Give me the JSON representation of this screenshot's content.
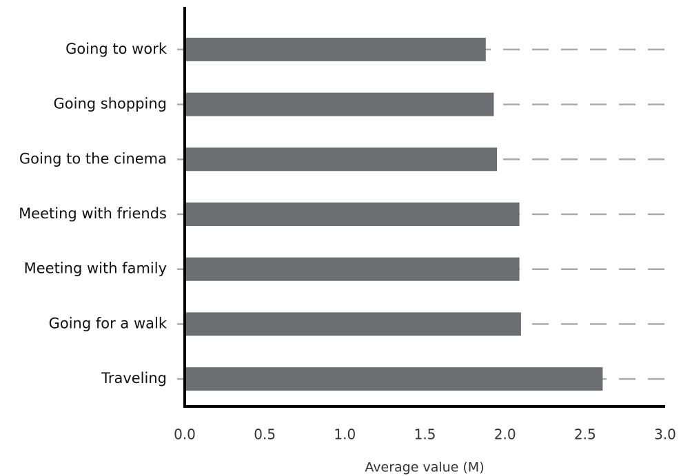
{
  "chart_data": {
    "type": "bar",
    "orientation": "horizontal",
    "x_label": "Average value (M)",
    "categories": [
      "Going to work",
      "Going shopping",
      "Going to the cinema",
      "Meeting with friends",
      "Meeting with family",
      "Going for a walk",
      "Traveling"
    ],
    "values": [
      1.88,
      1.93,
      1.95,
      2.09,
      2.09,
      2.1,
      2.61
    ],
    "color": "#6d6e71",
    "xlim": [
      0,
      3
    ],
    "xticks": [
      {
        "value": 0,
        "label": "0.0"
      },
      0.5,
      {
        "value": 1,
        "label": "1.0"
      },
      1.5,
      {
        "value": 2,
        "label": "2.0"
      },
      2.5,
      {
        "value": 3,
        "label": "3.0"
      }
    ]
  }
}
